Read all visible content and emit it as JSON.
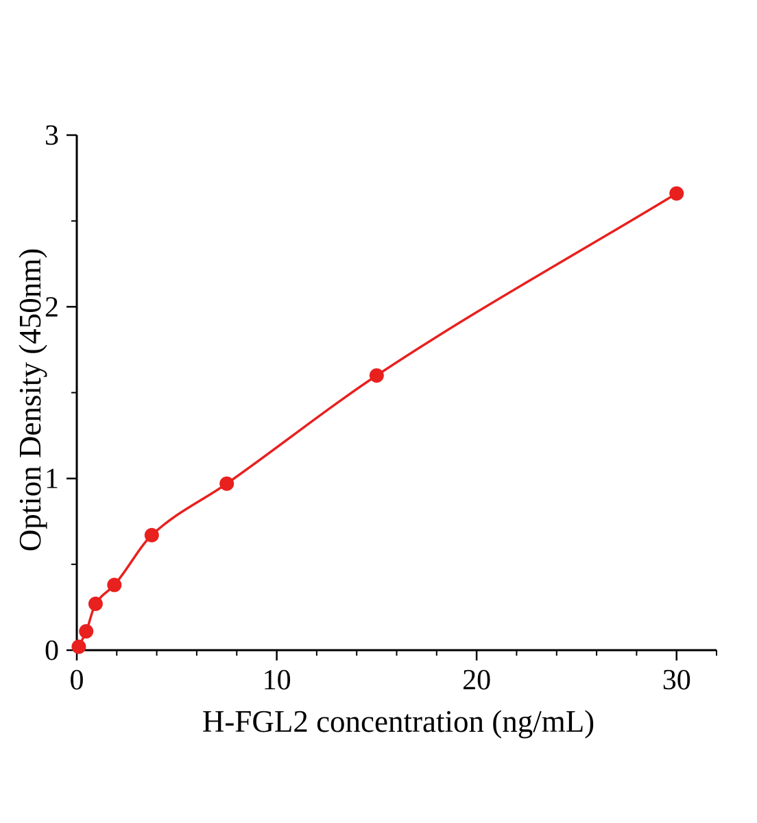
{
  "chart_data": {
    "type": "scatter",
    "title": "",
    "xlabel": "H-FGL2 concentration (ng/mL)",
    "ylabel": "Option Density (450nm)",
    "series": [
      {
        "x": [
          0.1,
          0.47,
          0.94,
          1.88,
          3.75,
          7.5,
          15,
          30
        ],
        "y": [
          0.02,
          0.11,
          0.27,
          0.38,
          0.67,
          0.97,
          1.6,
          2.66
        ]
      }
    ],
    "fit_curve": true,
    "xlim": [
      0,
      32
    ],
    "ylim": [
      0,
      3
    ],
    "x_major_ticks": [
      0,
      10,
      20,
      30
    ],
    "y_major_ticks": [
      0,
      1,
      2,
      3
    ],
    "x_minor_step": 2,
    "y_minor_step": 0.5,
    "grid": false,
    "legend_position": "none",
    "marker_color": "#e8201e",
    "line_color": "#e8201e",
    "axis_color": "#000000",
    "background": "#ffffff"
  }
}
